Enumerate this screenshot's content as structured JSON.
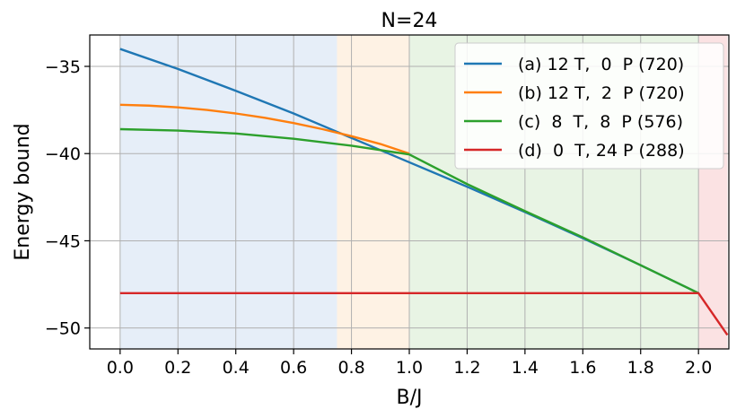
{
  "chart_data": {
    "type": "line",
    "title": "N=24",
    "xlabel": "B/J",
    "ylabel": "Energy bound",
    "xlim": [
      -0.105,
      2.105
    ],
    "ylim": [
      -51.2,
      -33.2
    ],
    "xticks": [
      0.0,
      0.2,
      0.4,
      0.6,
      0.8,
      1.0,
      1.2,
      1.4,
      1.6,
      1.8,
      2.0
    ],
    "xtick_labels": [
      "0.0",
      "0.2",
      "0.4",
      "0.6",
      "0.8",
      "1.0",
      "1.2",
      "1.4",
      "1.6",
      "1.8",
      "2.0"
    ],
    "yticks": [
      -35,
      -40,
      -45,
      -50
    ],
    "ytick_labels": [
      "−35",
      "−40",
      "−45",
      "−50"
    ],
    "grid": true,
    "legend_position": "top-right",
    "regions": [
      {
        "x0": 0.0,
        "x1": 0.75,
        "color": "#e6eef8"
      },
      {
        "x0": 0.75,
        "x1": 1.0,
        "color": "#fef2e4"
      },
      {
        "x0": 1.0,
        "x1": 2.0,
        "color": "#e8f4e4"
      },
      {
        "x0": 2.0,
        "x1": 2.1,
        "color": "#fbe2e3"
      }
    ],
    "series": [
      {
        "name": "(a) 12 T,  0  P (720)",
        "color": "#1f77b4",
        "x": [
          0.0,
          0.2,
          0.4,
          0.6,
          0.75,
          0.9,
          1.0,
          1.2,
          1.4,
          1.6,
          1.8,
          2.0
        ],
        "y": [
          -34.0,
          -35.15,
          -36.4,
          -37.7,
          -38.75,
          -39.8,
          -40.5,
          -41.9,
          -43.35,
          -44.85,
          -46.4,
          -48.0
        ]
      },
      {
        "name": "(b) 12 T,  2  P (720)",
        "color": "#ff7f0e",
        "x": [
          0.0,
          0.1,
          0.2,
          0.3,
          0.4,
          0.5,
          0.6,
          0.7,
          0.8,
          0.9,
          1.0
        ],
        "y": [
          -37.2,
          -37.25,
          -37.35,
          -37.5,
          -37.7,
          -37.95,
          -38.25,
          -38.6,
          -39.0,
          -39.45,
          -40.0
        ]
      },
      {
        "name": "(c)  8  T,  8  P (576)",
        "color": "#2ca02c",
        "x": [
          0.0,
          0.2,
          0.4,
          0.6,
          0.8,
          1.0,
          1.2,
          1.4,
          1.6,
          1.8,
          2.0
        ],
        "y": [
          -38.6,
          -38.68,
          -38.85,
          -39.15,
          -39.55,
          -40.05,
          -41.75,
          -43.3,
          -44.8,
          -46.4,
          -48.0
        ]
      },
      {
        "name": "(d)  0  T, 24 P (288)",
        "color": "#d62728",
        "x": [
          0.0,
          0.5,
          1.0,
          1.5,
          2.0,
          2.1
        ],
        "y": [
          -48.0,
          -48.0,
          -48.0,
          -48.0,
          -48.0,
          -50.4
        ]
      }
    ]
  }
}
